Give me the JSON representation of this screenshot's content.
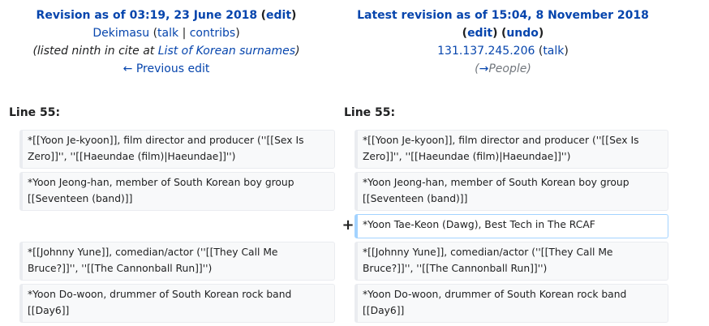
{
  "left_header": {
    "title": "Revision as of 03:19, 23 June 2018",
    "edit": "edit",
    "user": "Dekimasu",
    "talk": "talk",
    "contribs": "contribs",
    "summary_prefix": "(listed ninth in cite at ",
    "summary_link": "List of Korean surnames",
    "summary_suffix": ")",
    "previous_edit": "← Previous edit"
  },
  "right_header": {
    "title": "Latest revision as of 15:04, 8 November 2018",
    "edit": "edit",
    "undo": "undo",
    "user": "131.137.245.206",
    "talk": "talk",
    "summary_arrow": "→",
    "summary_section": "People"
  },
  "diff": {
    "left_line": "Line 55:",
    "right_line": "Line 55:",
    "added_marker": "+",
    "rows": [
      {
        "left": "*[[Yoon Je-kyoon]], film director and producer (''[[Sex Is Zero]]'', ''[[Haeundae (film)|Haeundae]]'')",
        "right": "*[[Yoon Je-kyoon]], film director and producer (''[[Sex Is Zero]]'', ''[[Haeundae (film)|Haeundae]]'')"
      },
      {
        "left": "*Yoon Jeong-han, member of South Korean boy group [[Seventeen (band)]]",
        "right": "*Yoon Jeong-han, member of South Korean boy group [[Seventeen (band)]]"
      },
      {
        "left": "",
        "right": "*Yoon Tae-Keon (Dawg), Best Tech in The RCAF"
      },
      {
        "left": "*[[Johnny Yune]], comedian/actor (''[[They Call Me Bruce?]]'', ''[[The Cannonball Run]]'')",
        "right": "*[[Johnny Yune]], comedian/actor (''[[They Call Me Bruce?]]'', ''[[The Cannonball Run]]'')"
      },
      {
        "left": "*Yoon Do-woon, drummer of South Korean rock band [[Day6]]",
        "right": "*Yoon Do-woon, drummer of South Korean rock band [[Day6]]"
      }
    ]
  }
}
